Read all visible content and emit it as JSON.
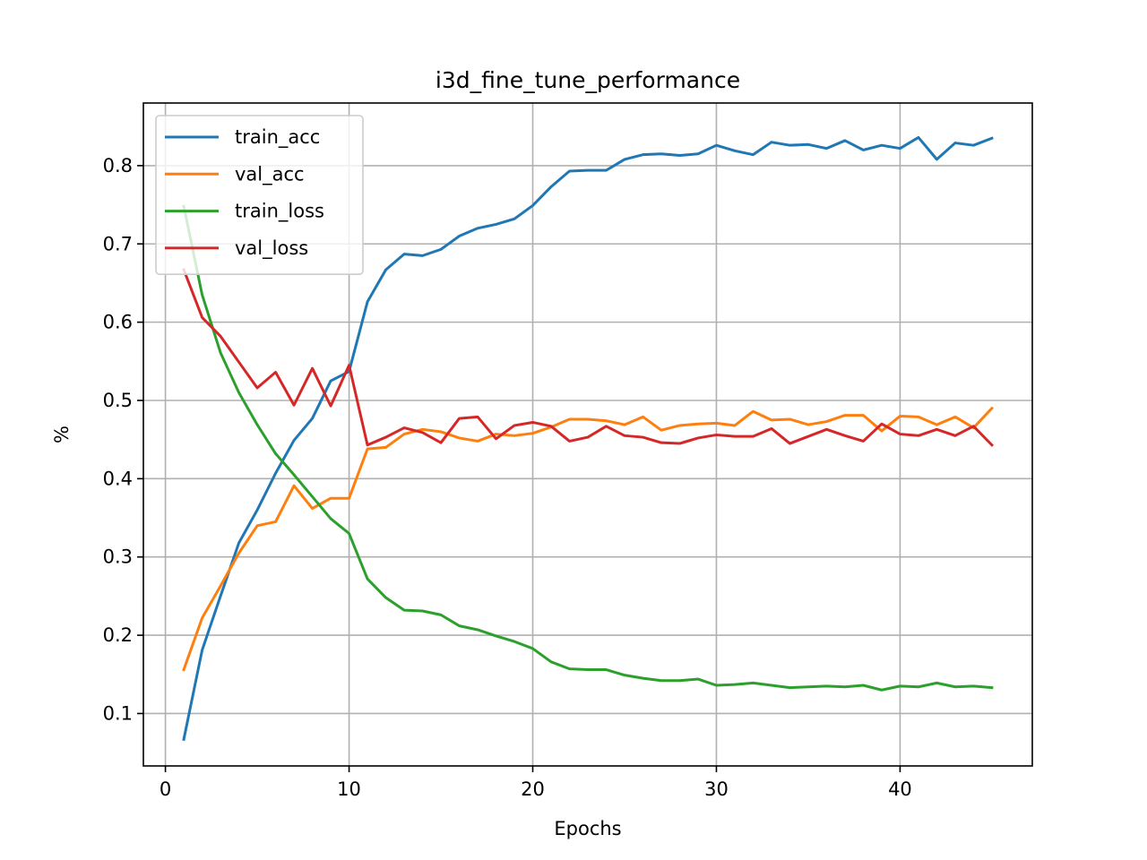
{
  "chart_data": {
    "type": "line",
    "title": "i3d_fine_tune_performance",
    "xlabel": "Epochs",
    "ylabel": "%",
    "xlim": [
      -1.2,
      47.2
    ],
    "ylim": [
      0.033,
      0.88
    ],
    "xticks": [
      0,
      10,
      20,
      30,
      40
    ],
    "yticks": [
      0.1,
      0.2,
      0.3,
      0.4,
      0.5,
      0.6,
      0.7,
      0.8
    ],
    "ytick_labels": [
      "0.1",
      "0.2",
      "0.3",
      "0.4",
      "0.5",
      "0.6",
      "0.7",
      "0.8"
    ],
    "grid": true,
    "legend_position": "upper-left",
    "x": [
      1,
      2,
      3,
      4,
      5,
      6,
      7,
      8,
      9,
      10,
      11,
      12,
      13,
      14,
      15,
      16,
      17,
      18,
      19,
      20,
      21,
      22,
      23,
      24,
      25,
      26,
      27,
      28,
      29,
      30,
      31,
      32,
      33,
      34,
      35,
      36,
      37,
      38,
      39,
      40,
      41,
      42,
      43,
      44,
      45
    ],
    "series": [
      {
        "name": "train_acc",
        "color": "#1f77b4",
        "values": [
          0.067,
          0.181,
          0.25,
          0.318,
          0.36,
          0.407,
          0.449,
          0.477,
          0.525,
          0.537,
          0.626,
          0.667,
          0.687,
          0.685,
          0.693,
          0.71,
          0.72,
          0.725,
          0.732,
          0.749,
          0.773,
          0.793,
          0.794,
          0.794,
          0.808,
          0.814,
          0.815,
          0.813,
          0.815,
          0.826,
          0.819,
          0.814,
          0.83,
          0.826,
          0.827,
          0.822,
          0.832,
          0.82,
          0.826,
          0.822,
          0.836,
          0.808,
          0.829,
          0.826,
          0.835
        ]
      },
      {
        "name": "val_acc",
        "color": "#ff7f0e",
        "values": [
          0.156,
          0.222,
          0.263,
          0.305,
          0.34,
          0.345,
          0.391,
          0.362,
          0.375,
          0.375,
          0.438,
          0.44,
          0.457,
          0.463,
          0.46,
          0.452,
          0.448,
          0.457,
          0.455,
          0.458,
          0.466,
          0.476,
          0.476,
          0.474,
          0.469,
          0.479,
          0.462,
          0.468,
          0.47,
          0.471,
          0.468,
          0.486,
          0.475,
          0.476,
          0.469,
          0.473,
          0.481,
          0.481,
          0.461,
          0.48,
          0.479,
          0.469,
          0.479,
          0.465,
          0.49
        ]
      },
      {
        "name": "train_loss",
        "color": "#2ca02c",
        "values": [
          0.748,
          0.635,
          0.561,
          0.51,
          0.469,
          0.432,
          0.405,
          0.377,
          0.349,
          0.33,
          0.272,
          0.248,
          0.232,
          0.231,
          0.226,
          0.212,
          0.207,
          0.199,
          0.192,
          0.183,
          0.166,
          0.157,
          0.156,
          0.156,
          0.149,
          0.145,
          0.142,
          0.142,
          0.144,
          0.136,
          0.137,
          0.139,
          0.136,
          0.133,
          0.134,
          0.135,
          0.134,
          0.136,
          0.13,
          0.135,
          0.134,
          0.139,
          0.134,
          0.135,
          0.133
        ]
      },
      {
        "name": "val_loss",
        "color": "#d62728",
        "values": [
          0.667,
          0.606,
          0.582,
          0.549,
          0.516,
          0.536,
          0.494,
          0.541,
          0.493,
          0.545,
          0.443,
          0.453,
          0.465,
          0.459,
          0.446,
          0.477,
          0.479,
          0.451,
          0.468,
          0.472,
          0.467,
          0.448,
          0.453,
          0.467,
          0.455,
          0.453,
          0.446,
          0.445,
          0.452,
          0.456,
          0.454,
          0.454,
          0.464,
          0.445,
          0.454,
          0.463,
          0.455,
          0.448,
          0.47,
          0.457,
          0.455,
          0.463,
          0.455,
          0.467,
          0.443
        ]
      }
    ]
  }
}
